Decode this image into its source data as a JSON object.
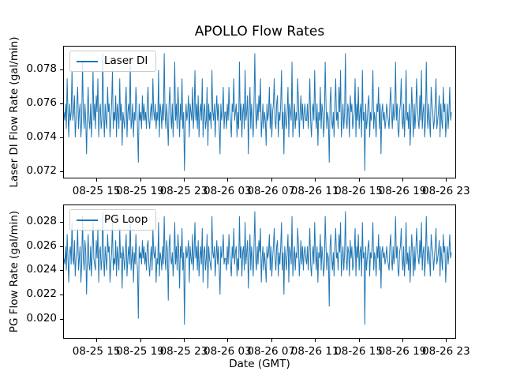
{
  "figure": {
    "title": "APOLLO Flow Rates",
    "background": "#ffffff",
    "line_color": "#1f77b4",
    "text_color": "#000000",
    "legend_border_color": "#cccccc"
  },
  "chart_data": [
    {
      "type": "line",
      "name": "laser-di-subplot",
      "legend": "Laser DI",
      "legend_position": "upper-left",
      "xlabel": "",
      "ylabel": "Laser DI Flow Rate (gal/min)",
      "ylim": [
        0.0716,
        0.0794
      ],
      "yticks": [
        0.072,
        0.074,
        0.076,
        0.078
      ],
      "ytick_labels": [
        "0.072",
        "0.074",
        "0.076",
        "0.078"
      ],
      "xlim_hours": [
        11.96,
        47.91
      ],
      "xtick_hours": [
        15,
        19,
        23,
        27,
        31,
        35,
        39,
        43,
        47
      ],
      "xtick_labels": [
        "08-25 15",
        "08-25 19",
        "08-25 23",
        "08-26 03",
        "08-26 07",
        "08-26 11",
        "08-26 15",
        "08-26 19",
        "08-26 23"
      ],
      "grid": false,
      "x_start_hour": 11.96,
      "x_end_hour": 47.55,
      "values_scale": 0.0001,
      "values": [
        755,
        750,
        760,
        745,
        775,
        755,
        740,
        760,
        750,
        755,
        780,
        750,
        755,
        765,
        740,
        750,
        760,
        770,
        745,
        755,
        760,
        740,
        750,
        785,
        755,
        745,
        760,
        750,
        730,
        755,
        770,
        750,
        745,
        760,
        740,
        755,
        780,
        750,
        760,
        745,
        765,
        755,
        775,
        740,
        755,
        760,
        745,
        750,
        790,
        755,
        740,
        760,
        750,
        745,
        770,
        755,
        760,
        740,
        750,
        760,
        780,
        745,
        755,
        750,
        765,
        740,
        760,
        755,
        745,
        775,
        750,
        760,
        735,
        755,
        750,
        745,
        760,
        770,
        740,
        755,
        760,
        750,
        785,
        745,
        750,
        760,
        740,
        755,
        750,
        770,
        760,
        745,
        725,
        760,
        750,
        755,
        745,
        765,
        750,
        760,
        750,
        755,
        745,
        760,
        770,
        750,
        745,
        755,
        760,
        750,
        775,
        755,
        750,
        760,
        745,
        755,
        750,
        780,
        740,
        760,
        755,
        745,
        760,
        750,
        790,
        755,
        745,
        760,
        750,
        735,
        760,
        770,
        755,
        745,
        760,
        740,
        755,
        785,
        750,
        760,
        745,
        770,
        755,
        740,
        760,
        750,
        775,
        745,
        755,
        720,
        745,
        760,
        750,
        755,
        765,
        740,
        760,
        755,
        750,
        770,
        745,
        755,
        780,
        750,
        760,
        745,
        765,
        740,
        755,
        760,
        750,
        775,
        740,
        755,
        760,
        745,
        750,
        770,
        735,
        760,
        750,
        755,
        745,
        780,
        755,
        750,
        760,
        740,
        755,
        765,
        750,
        760,
        745,
        730,
        760,
        750,
        755,
        770,
        745,
        755,
        755,
        745,
        760,
        750,
        770,
        755,
        750,
        740,
        760,
        755,
        775,
        750,
        755,
        760,
        740,
        755,
        745,
        785,
        750,
        760,
        740,
        755,
        760,
        745,
        780,
        750,
        755,
        765,
        730,
        755,
        770,
        745,
        760,
        750,
        740,
        760,
        790,
        755,
        745,
        760,
        750,
        765,
        755,
        775,
        740,
        750,
        760,
        745,
        755,
        750,
        735,
        760,
        750,
        755,
        770,
        745,
        760,
        740,
        755,
        760,
        775,
        750,
        745,
        760,
        765,
        740,
        755,
        750,
        760,
        780,
        745,
        755,
        730,
        760,
        750,
        745,
        755,
        770,
        740,
        760,
        755,
        750,
        785,
        740,
        750,
        760,
        745,
        755,
        750,
        775,
        760,
        740,
        755,
        765,
        750,
        760,
        745,
        755,
        760,
        750,
        750,
        760,
        745,
        755,
        775,
        750,
        740,
        755,
        760,
        750,
        780,
        755,
        745,
        760,
        735,
        755,
        750,
        770,
        745,
        760,
        755,
        740,
        750,
        785,
        760,
        745,
        755,
        750,
        725,
        760,
        770,
        750,
        745,
        755,
        740,
        760,
        775,
        750,
        755,
        745,
        770,
        755,
        780,
        740,
        750,
        760,
        745,
        755,
        790,
        750,
        745,
        760,
        755,
        740,
        765,
        755,
        760,
        745,
        750,
        755,
        775,
        740,
        760,
        750,
        770,
        745,
        755,
        760,
        740,
        780,
        750,
        755,
        720,
        760,
        745,
        750,
        760,
        765,
        740,
        755,
        750,
        760,
        780,
        745,
        755,
        750,
        740,
        760,
        755,
        770,
        745,
        760,
        730,
        755,
        760,
        750,
        755,
        745,
        750,
        760,
        755,
        750,
        745,
        760,
        770,
        755,
        745,
        760,
        750,
        755,
        785,
        750,
        760,
        745,
        740,
        755,
        760,
        775,
        750,
        745,
        760,
        740,
        755,
        780,
        750,
        755,
        745,
        760,
        735,
        750,
        770,
        755,
        740,
        760,
        745,
        755,
        775,
        760,
        750,
        745,
        765,
        750,
        780,
        745,
        755,
        760,
        740,
        750,
        785,
        755,
        745,
        760,
        750,
        740,
        770,
        760,
        755,
        745,
        750,
        760,
        775,
        745,
        750,
        755,
        765,
        740,
        760,
        750,
        745,
        770,
        755,
        760,
        740,
        750,
        760,
        745,
        755,
        770,
        750,
        755
      ]
    },
    {
      "type": "line",
      "name": "pg-loop-subplot",
      "legend": "PG Loop",
      "legend_position": "upper-left",
      "xlabel": "Date (GMT)",
      "ylabel": "PG Flow Rate (gal/min)",
      "ylim": [
        0.0184,
        0.0294
      ],
      "yticks": [
        0.02,
        0.022,
        0.024,
        0.026,
        0.028
      ],
      "ytick_labels": [
        "0.020",
        "0.022",
        "0.024",
        "0.026",
        "0.028"
      ],
      "xlim_hours": [
        11.96,
        47.91
      ],
      "xtick_hours": [
        15,
        19,
        23,
        27,
        31,
        35,
        39,
        43,
        47
      ],
      "xtick_labels": [
        "08-25 15",
        "08-25 19",
        "08-25 23",
        "08-26 03",
        "08-26 07",
        "08-26 11",
        "08-26 15",
        "08-26 19",
        "08-26 23"
      ],
      "grid": false,
      "x_start_hour": 11.96,
      "x_end_hour": 47.55,
      "values_scale": 0.0001,
      "values": [
        250,
        245,
        260,
        240,
        270,
        250,
        230,
        255,
        260,
        245,
        280,
        250,
        245,
        265,
        235,
        250,
        255,
        275,
        240,
        250,
        260,
        230,
        245,
        285,
        250,
        240,
        265,
        255,
        220,
        250,
        270,
        245,
        240,
        260,
        235,
        255,
        280,
        250,
        245,
        240,
        265,
        250,
        275,
        230,
        255,
        260,
        240,
        250,
        289,
        250,
        235,
        260,
        250,
        240,
        270,
        255,
        260,
        230,
        245,
        255,
        280,
        240,
        250,
        245,
        265,
        235,
        260,
        250,
        240,
        275,
        250,
        255,
        225,
        260,
        250,
        240,
        255,
        270,
        235,
        250,
        260,
        245,
        285,
        240,
        250,
        260,
        230,
        255,
        245,
        270,
        250,
        240,
        200,
        260,
        250,
        255,
        245,
        265,
        250,
        260,
        245,
        255,
        240,
        260,
        265,
        245,
        235,
        250,
        260,
        240,
        275,
        255,
        250,
        260,
        230,
        250,
        245,
        280,
        235,
        255,
        250,
        240,
        260,
        245,
        285,
        250,
        240,
        265,
        255,
        215,
        260,
        270,
        250,
        245,
        255,
        235,
        250,
        280,
        245,
        260,
        240,
        270,
        255,
        225,
        260,
        250,
        275,
        240,
        255,
        195,
        245,
        260,
        250,
        255,
        265,
        230,
        260,
        250,
        245,
        270,
        240,
        255,
        280,
        250,
        260,
        240,
        265,
        235,
        250,
        260,
        245,
        275,
        230,
        255,
        260,
        240,
        250,
        270,
        225,
        260,
        250,
        245,
        240,
        285,
        255,
        250,
        260,
        235,
        250,
        265,
        245,
        260,
        240,
        220,
        260,
        250,
        255,
        270,
        245,
        250,
        250,
        240,
        260,
        245,
        270,
        255,
        245,
        235,
        260,
        250,
        275,
        245,
        255,
        260,
        235,
        250,
        240,
        285,
        250,
        260,
        235,
        255,
        260,
        240,
        280,
        245,
        255,
        265,
        225,
        250,
        270,
        240,
        260,
        250,
        235,
        260,
        289,
        250,
        240,
        260,
        245,
        265,
        255,
        275,
        230,
        250,
        260,
        240,
        255,
        245,
        230,
        260,
        250,
        255,
        270,
        240,
        260,
        235,
        250,
        260,
        275,
        250,
        240,
        260,
        265,
        235,
        255,
        245,
        260,
        280,
        240,
        255,
        220,
        260,
        250,
        240,
        255,
        270,
        230,
        260,
        255,
        245,
        285,
        235,
        250,
        260,
        240,
        255,
        250,
        275,
        260,
        235,
        250,
        265,
        245,
        260,
        240,
        255,
        260,
        250,
        245,
        260,
        240,
        255,
        275,
        245,
        235,
        250,
        260,
        245,
        280,
        255,
        240,
        260,
        230,
        255,
        250,
        270,
        240,
        260,
        250,
        235,
        245,
        285,
        260,
        240,
        255,
        250,
        210,
        260,
        270,
        250,
        240,
        255,
        235,
        260,
        275,
        250,
        255,
        240,
        270,
        255,
        280,
        235,
        250,
        260,
        240,
        255,
        289,
        250,
        240,
        260,
        255,
        235,
        265,
        250,
        260,
        240,
        245,
        255,
        275,
        235,
        260,
        250,
        270,
        240,
        255,
        260,
        235,
        280,
        250,
        255,
        195,
        260,
        240,
        250,
        260,
        265,
        235,
        255,
        250,
        260,
        280,
        240,
        255,
        250,
        235,
        260,
        250,
        270,
        240,
        260,
        225,
        255,
        260,
        250,
        255,
        245,
        250,
        260,
        250,
        245,
        240,
        260,
        270,
        250,
        240,
        260,
        245,
        255,
        285,
        250,
        260,
        240,
        235,
        255,
        260,
        275,
        250,
        240,
        260,
        235,
        250,
        280,
        245,
        255,
        240,
        260,
        230,
        250,
        270,
        255,
        235,
        260,
        240,
        255,
        275,
        260,
        250,
        245,
        265,
        250,
        280,
        240,
        255,
        260,
        235,
        250,
        285,
        255,
        245,
        260,
        250,
        235,
        270,
        260,
        255,
        240,
        250,
        260,
        275,
        245,
        250,
        255,
        265,
        235,
        260,
        250,
        240,
        270,
        255,
        260,
        230,
        250,
        260,
        245,
        255,
        270,
        250,
        255
      ]
    }
  ]
}
